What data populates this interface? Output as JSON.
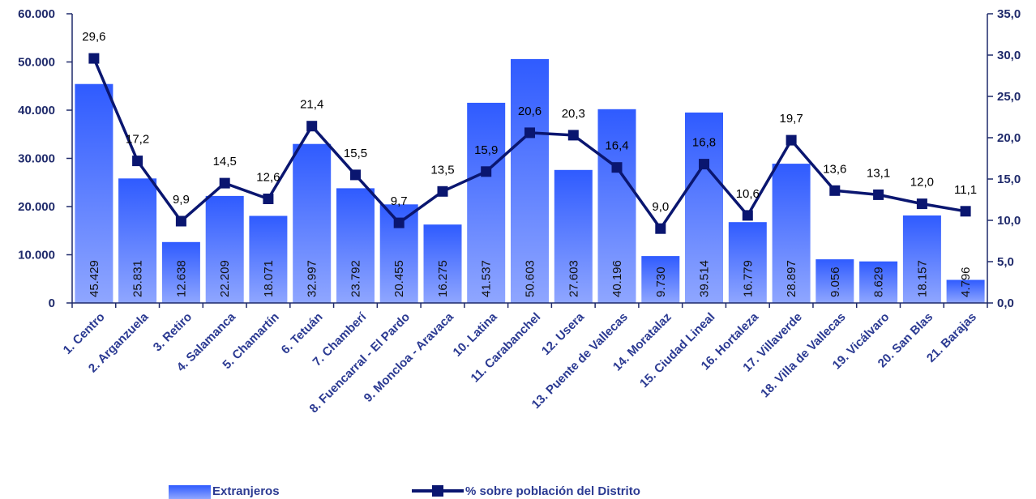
{
  "chart_data": {
    "type": "bar",
    "categories": [
      "1. Centro",
      "2. Arganzuela",
      "3. Retiro",
      "4. Salamanca",
      "5. Chamartín",
      "6. Tetuán",
      "7. Chamberí",
      "8. Fuencarral - El Pardo",
      "9. Moncloa - Aravaca",
      "10. Latina",
      "11. Carabanchel",
      "12. Usera",
      "13. Puente de Vallecas",
      "14. Moratalaz",
      "15. Ciudad Lineal",
      "16. Hortaleza",
      "17. Villaverde",
      "18. Villa de Vallecas",
      "19. Vicálvaro",
      "20. San Blas",
      "21. Barajas"
    ],
    "series": [
      {
        "name": "Extranjeros",
        "type": "bar",
        "axis": "left",
        "values": [
          45429,
          25831,
          12638,
          22209,
          18071,
          32997,
          23792,
          20455,
          16275,
          41537,
          50603,
          27603,
          40196,
          9730,
          39514,
          16779,
          28897,
          9056,
          8629,
          18157,
          4796
        ],
        "labels": [
          "45.429",
          "25.831",
          "12.638",
          "22.209",
          "18.071",
          "32.997",
          "23.792",
          "20.455",
          "16.275",
          "41.537",
          "50.603",
          "27.603",
          "40.196",
          "9.730",
          "39.514",
          "16.779",
          "28.897",
          "9.056",
          "8.629",
          "18.157",
          "4.796"
        ]
      },
      {
        "name": "% sobre población del Distrito",
        "type": "line",
        "axis": "right",
        "values": [
          29.6,
          17.2,
          9.9,
          14.5,
          12.6,
          21.4,
          15.5,
          9.7,
          13.5,
          15.9,
          20.6,
          20.3,
          16.4,
          9.0,
          16.8,
          10.6,
          19.7,
          13.6,
          13.1,
          12.0,
          11.1
        ],
        "labels": [
          "29,6",
          "17,2",
          "9,9",
          "14,5",
          "12,6",
          "21,4",
          "15,5",
          "9,7",
          "13,5",
          "15,9",
          "20,6",
          "20,3",
          "16,4",
          "9,0",
          "16,8",
          "10,6",
          "19,7",
          "13,6",
          "13,1",
          "12,0",
          "11,1"
        ]
      }
    ],
    "y_left": {
      "lim": [
        0,
        60000
      ],
      "ticks": [
        0,
        10000,
        20000,
        30000,
        40000,
        50000,
        60000
      ],
      "tick_labels": [
        "0",
        "10.000",
        "20.000",
        "30.000",
        "40.000",
        "50.000",
        "60.000"
      ]
    },
    "y_right": {
      "lim": [
        0,
        35
      ],
      "ticks": [
        0,
        5,
        10,
        15,
        20,
        25,
        30,
        35
      ],
      "tick_labels": [
        "0,0",
        "5,0",
        "10,0",
        "15,0",
        "20,0",
        "25,0",
        "30,0",
        "35,0"
      ]
    },
    "legend": {
      "placement": "bottom",
      "items": [
        "Extranjeros",
        "% sobre población del Distrito"
      ]
    },
    "grid": false,
    "colors": {
      "bar_top": "#2F5BFF",
      "bar_bottom": "#8FA6FF",
      "line": "#0A1670",
      "axis": "#1F2A6B"
    }
  }
}
